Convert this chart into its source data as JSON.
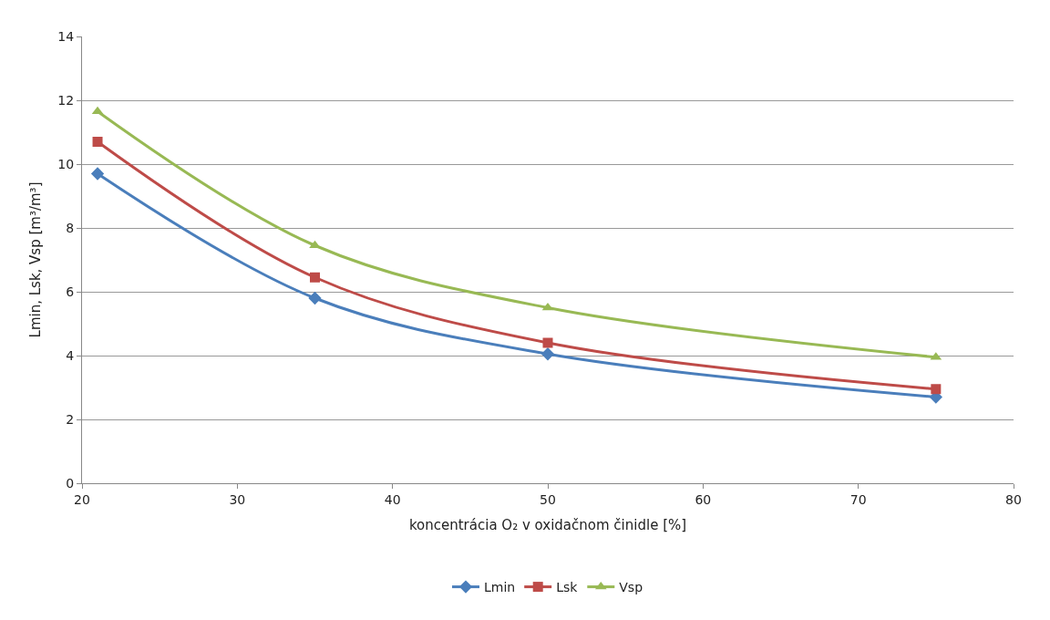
{
  "chart_data": {
    "type": "line",
    "xlabel": "koncentrácia O₂ v oxidačnom činidle [%]",
    "ylabel": "Lmin, Lsk, Vsp [m³/m³]",
    "x": [
      21,
      35,
      50,
      75
    ],
    "series": [
      {
        "name": "Lmin",
        "color": "#4a7ebb",
        "marker": "diamond",
        "values": [
          9.7,
          5.8,
          4.05,
          2.7
        ]
      },
      {
        "name": "Lsk",
        "color": "#be4b48",
        "marker": "square",
        "values": [
          10.7,
          6.45,
          4.4,
          2.95
        ]
      },
      {
        "name": "Vsp",
        "color": "#98b954",
        "marker": "triangle",
        "values": [
          11.65,
          7.45,
          5.5,
          3.95
        ]
      }
    ],
    "xlim": [
      20,
      80
    ],
    "xticks": [
      20,
      30,
      40,
      50,
      60,
      70,
      80
    ],
    "ylim": [
      0,
      14
    ],
    "yticks": [
      0,
      2,
      4,
      6,
      8,
      10,
      12,
      14
    ],
    "grid": "y",
    "legend": "bottom"
  }
}
